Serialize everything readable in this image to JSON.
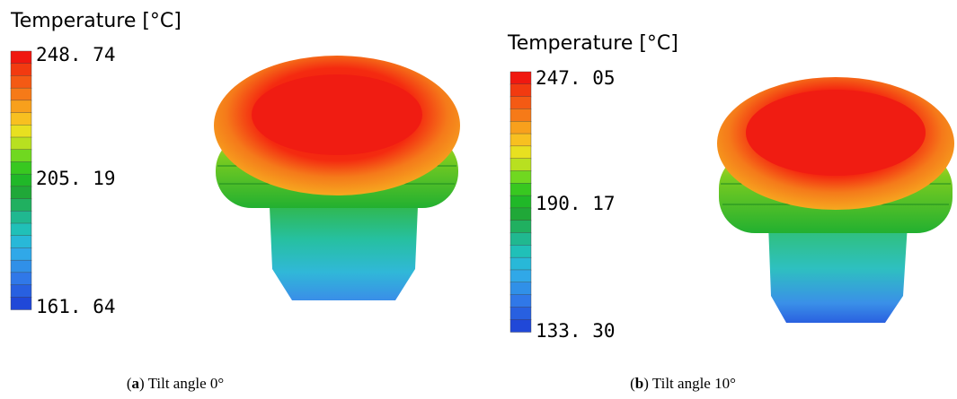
{
  "panels": [
    {
      "legend": {
        "title": "Temperature [°C]",
        "labels": [
          "248. 74",
          "205. 19",
          "161. 64"
        ]
      },
      "caption": [
        "(",
        "a",
        ") Tilt angle 0°"
      ]
    },
    {
      "legend": {
        "title": "Temperature [°C]",
        "labels": [
          "247. 05",
          "190. 17",
          "133. 30"
        ]
      },
      "caption": [
        "(",
        "b",
        ") Tilt angle 10°"
      ]
    }
  ]
}
